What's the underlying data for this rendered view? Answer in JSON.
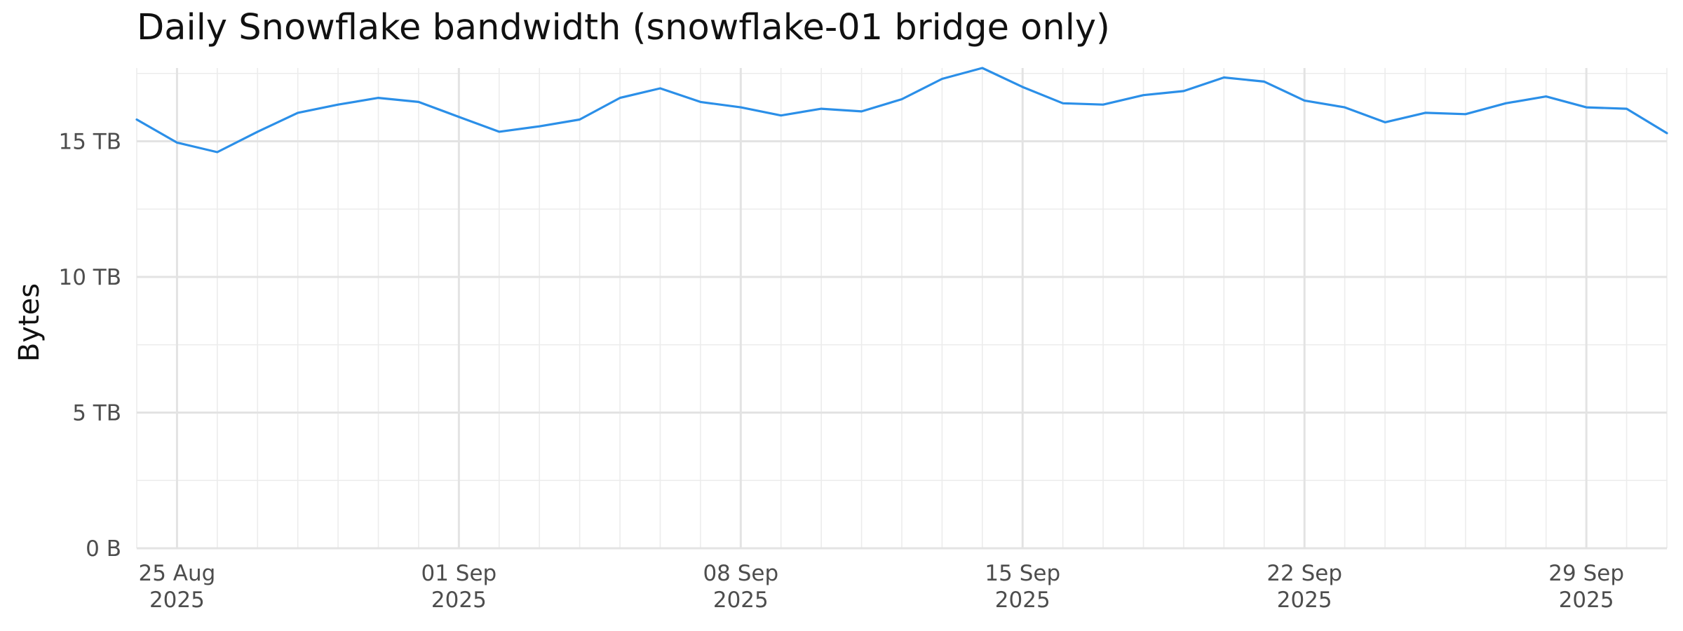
{
  "chart_data": {
    "type": "line",
    "title": "Daily Snowflake bandwidth (snowflake-01 bridge only)",
    "xlabel": "",
    "ylabel": "Bytes",
    "x_start": "2025-08-24",
    "x_end": "2025-10-01",
    "ylim_tb": [
      0,
      17.7
    ],
    "y_ticks": [
      {
        "value": 0,
        "label": "0 B"
      },
      {
        "value": 5,
        "label": "5 TB"
      },
      {
        "value": 10,
        "label": "10 TB"
      },
      {
        "value": 15,
        "label": "15 TB"
      }
    ],
    "x_ticks": [
      {
        "date": "2025-08-25",
        "line1": "25 Aug",
        "line2": "2025"
      },
      {
        "date": "2025-09-01",
        "line1": "01 Sep",
        "line2": "2025"
      },
      {
        "date": "2025-09-08",
        "line1": "08 Sep",
        "line2": "2025"
      },
      {
        "date": "2025-09-15",
        "line1": "15 Sep",
        "line2": "2025"
      },
      {
        "date": "2025-09-22",
        "line1": "22 Sep",
        "line2": "2025"
      },
      {
        "date": "2025-09-29",
        "line1": "29 Sep",
        "line2": "2025"
      }
    ],
    "grid": true,
    "line_color": "#2b8fe8",
    "series": [
      {
        "name": "",
        "points": [
          {
            "x": "2025-08-24",
            "y": 15.8
          },
          {
            "x": "2025-08-25",
            "y": 14.95
          },
          {
            "x": "2025-08-26",
            "y": 14.6
          },
          {
            "x": "2025-08-27",
            "y": 15.35
          },
          {
            "x": "2025-08-28",
            "y": 16.05
          },
          {
            "x": "2025-08-29",
            "y": 16.35
          },
          {
            "x": "2025-08-30",
            "y": 16.6
          },
          {
            "x": "2025-08-31",
            "y": 16.45
          },
          {
            "x": "2025-09-01",
            "y": 15.9
          },
          {
            "x": "2025-09-02",
            "y": 15.35
          },
          {
            "x": "2025-09-03",
            "y": 15.55
          },
          {
            "x": "2025-09-04",
            "y": 15.8
          },
          {
            "x": "2025-09-05",
            "y": 16.6
          },
          {
            "x": "2025-09-06",
            "y": 16.95
          },
          {
            "x": "2025-09-07",
            "y": 16.45
          },
          {
            "x": "2025-09-08",
            "y": 16.25
          },
          {
            "x": "2025-09-09",
            "y": 15.95
          },
          {
            "x": "2025-09-10",
            "y": 16.2
          },
          {
            "x": "2025-09-11",
            "y": 16.1
          },
          {
            "x": "2025-09-12",
            "y": 16.55
          },
          {
            "x": "2025-09-13",
            "y": 17.3
          },
          {
            "x": "2025-09-14",
            "y": 17.7
          },
          {
            "x": "2025-09-15",
            "y": 17.0
          },
          {
            "x": "2025-09-16",
            "y": 16.4
          },
          {
            "x": "2025-09-17",
            "y": 16.35
          },
          {
            "x": "2025-09-18",
            "y": 16.7
          },
          {
            "x": "2025-09-19",
            "y": 16.85
          },
          {
            "x": "2025-09-20",
            "y": 17.35
          },
          {
            "x": "2025-09-21",
            "y": 17.2
          },
          {
            "x": "2025-09-22",
            "y": 16.5
          },
          {
            "x": "2025-09-23",
            "y": 16.25
          },
          {
            "x": "2025-09-24",
            "y": 15.7
          },
          {
            "x": "2025-09-25",
            "y": 16.05
          },
          {
            "x": "2025-09-26",
            "y": 16.0
          },
          {
            "x": "2025-09-27",
            "y": 16.4
          },
          {
            "x": "2025-09-28",
            "y": 16.65
          },
          {
            "x": "2025-09-29",
            "y": 16.25
          },
          {
            "x": "2025-09-30",
            "y": 16.2
          },
          {
            "x": "2025-10-01",
            "y": 15.3
          }
        ]
      }
    ]
  }
}
